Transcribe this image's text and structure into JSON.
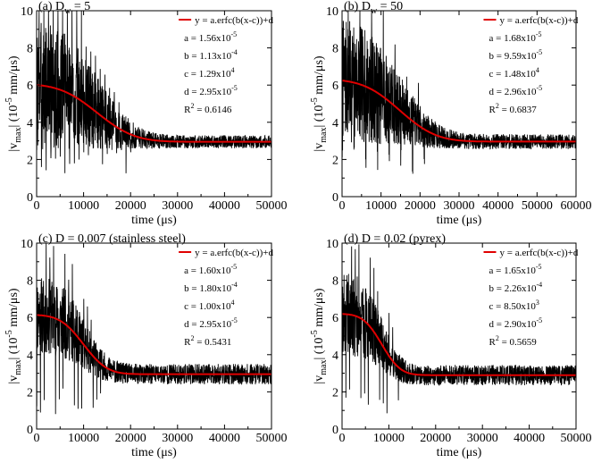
{
  "figure": {
    "ylabel_main": "|v",
    "ylabel_sub": "max",
    "ylabel_mid": "| (10",
    "ylabel_exp": "-5",
    "ylabel_tail": " mm/μs)"
  },
  "chart_data": [
    {
      "type": "line",
      "title_prefix": "(a) D",
      "title_sub": "w",
      "title_suffix": " = 5",
      "xlabel": "time (μs)",
      "xlim": [
        0,
        50000
      ],
      "ylim": [
        0,
        10
      ],
      "xticks": [
        0,
        10000,
        20000,
        30000,
        40000,
        50000
      ],
      "yticks": [
        0,
        2,
        4,
        6,
        8,
        10
      ],
      "legend": "y = a.erfc(b(x-c))+d",
      "fit": {
        "a": 1.56e-05,
        "b": 0.000113,
        "c": 12900.0,
        "d": 2.95e-05
      },
      "params": [
        {
          "label": "a = ",
          "mant": "1.56x10",
          "exp": "-5"
        },
        {
          "label": "b = ",
          "mant": "1.13x10",
          "exp": "-4"
        },
        {
          "label": "c = ",
          "mant": "1.29x10",
          "exp": "4"
        },
        {
          "label": "d = ",
          "mant": "2.95x10",
          "exp": "-5"
        }
      ],
      "r2_label": "R",
      "r2_exp": "2",
      "r2_value": " = 0.6146",
      "noise_amp": 3.2,
      "noise_tail": 0.35,
      "spike_spacing": 1000,
      "spike_lo": 1.2,
      "seed": 3
    },
    {
      "type": "line",
      "title_prefix": "(b) D",
      "title_sub": "w",
      "title_suffix": " = 50",
      "xlabel": "time (μs)",
      "xlim": [
        0,
        60000
      ],
      "ylim": [
        0,
        10
      ],
      "xticks": [
        0,
        10000,
        20000,
        30000,
        40000,
        50000,
        60000
      ],
      "yticks": [
        0,
        2,
        4,
        6,
        8,
        10
      ],
      "legend": "y = a.erfc(b(x-c))+d",
      "fit": {
        "a": 1.68e-05,
        "b": 9.59e-05,
        "c": 14800.0,
        "d": 2.96e-05
      },
      "params": [
        {
          "label": "a = ",
          "mant": "1.68x10",
          "exp": "-5"
        },
        {
          "label": "b = ",
          "mant": "9.59x10",
          "exp": "-5"
        },
        {
          "label": "c = ",
          "mant": "1.48x10",
          "exp": "4"
        },
        {
          "label": "d = ",
          "mant": "2.96x10",
          "exp": "-5"
        }
      ],
      "r2_label": "R",
      "r2_exp": "2",
      "r2_value": " = 0.6837",
      "noise_amp": 3.0,
      "noise_tail": 0.4,
      "spike_spacing": 3000,
      "spike_lo": 1.2,
      "seed": 7
    },
    {
      "type": "line",
      "title_prefix": "(c) D = 0.007 (stainless steel)",
      "title_sub": "",
      "title_suffix": "",
      "xlabel": "time (μs)",
      "xlim": [
        0,
        50000
      ],
      "ylim": [
        0,
        10
      ],
      "xticks": [
        0,
        10000,
        20000,
        30000,
        40000,
        50000
      ],
      "yticks": [
        0,
        2,
        4,
        6,
        8,
        10
      ],
      "legend": "y = a.erfc(b(x-c))+d",
      "fit": {
        "a": 1.6e-05,
        "b": 0.00018,
        "c": 10000.0,
        "d": 2.95e-05
      },
      "params": [
        {
          "label": "a = ",
          "mant": "1.60x10",
          "exp": "-5"
        },
        {
          "label": "b = ",
          "mant": "1.80x10",
          "exp": "-4"
        },
        {
          "label": "c = ",
          "mant": "1.00x10",
          "exp": "4"
        },
        {
          "label": "d = ",
          "mant": "2.95x10",
          "exp": "-5"
        }
      ],
      "r2_label": "R",
      "r2_exp": "2",
      "r2_value": " = 0.5431",
      "noise_amp": 1.6,
      "noise_tail": 0.55,
      "spike_spacing": 800,
      "spike_lo": 0.7,
      "seed": 11
    },
    {
      "type": "line",
      "title_prefix": "(d) D = 0.02 (pyrex)",
      "title_sub": "",
      "title_suffix": "",
      "xlabel": "time (μs)",
      "xlim": [
        0,
        50000
      ],
      "ylim": [
        0,
        10
      ],
      "xticks": [
        0,
        10000,
        20000,
        30000,
        40000,
        50000
      ],
      "yticks": [
        0,
        2,
        4,
        6,
        8,
        10
      ],
      "legend": "y = a.erfc(b(x-c))+d",
      "fit": {
        "a": 1.65e-05,
        "b": 0.000226,
        "c": 8500.0,
        "d": 2.9e-05
      },
      "params": [
        {
          "label": "a = ",
          "mant": "1.65x10",
          "exp": "-5"
        },
        {
          "label": "b = ",
          "mant": "2.26x10",
          "exp": "-4"
        },
        {
          "label": "c = ",
          "mant": "8.50x10",
          "exp": "3"
        },
        {
          "label": "d = ",
          "mant": "2.90x10",
          "exp": "-5"
        }
      ],
      "r2_label": "R",
      "r2_exp": "2",
      "r2_value": " = 0.5659",
      "noise_amp": 1.7,
      "noise_tail": 0.55,
      "spike_spacing": 800,
      "spike_lo": 0.7,
      "seed": 19
    }
  ]
}
